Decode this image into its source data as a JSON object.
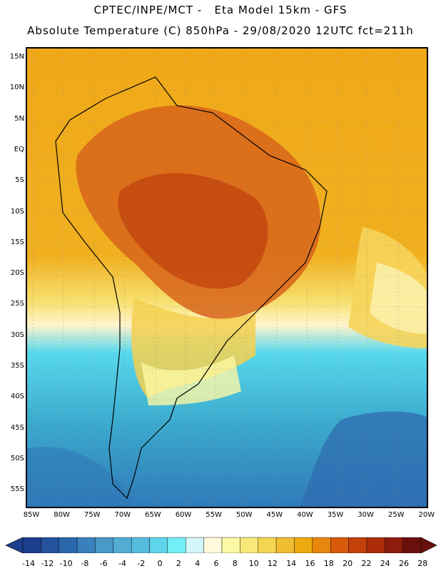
{
  "header": {
    "line1": "CPTEC/INPE/MCT -   Eta Model 15km - GFS",
    "line2": "Absolute Temperature (C) 850hPa - 29/08/2020 12UTC fct=211h"
  },
  "map": {
    "latitude_labels": [
      "15N",
      "10N",
      "5N",
      "EQ",
      "5S",
      "10S",
      "15S",
      "20S",
      "25S",
      "30S",
      "35S",
      "40S",
      "45S",
      "50S",
      "55S"
    ],
    "longitude_labels": [
      "85W",
      "80W",
      "75W",
      "70W",
      "65W",
      "60W",
      "55W",
      "50W",
      "45W",
      "40W",
      "35W",
      "30W",
      "25W",
      "20W"
    ],
    "colors": {
      "ocean_north": "#f0a818",
      "continent_hot": "#d8641a",
      "continent_very_hot": "#c2440e",
      "mild": "#f8e070",
      "cool": "#58d8ec",
      "cold": "#3aa8cc",
      "coldest": "#2f78b8"
    }
  },
  "colorbar": {
    "ticks": [
      "-14",
      "-12",
      "-10",
      "-8",
      "-6",
      "-4",
      "-2",
      "0",
      "2",
      "4",
      "6",
      "8",
      "10",
      "12",
      "14",
      "16",
      "18",
      "20",
      "22",
      "24",
      "26",
      "28"
    ],
    "colors": [
      "#1c3e8c",
      "#24529c",
      "#2c68ac",
      "#3a80bc",
      "#4898c8",
      "#52acd4",
      "#56bcde",
      "#5ed4ea",
      "#74eef6",
      "#d2f6fa",
      "#fffadc",
      "#fcf8a4",
      "#f8e878",
      "#f4d450",
      "#f0bc30",
      "#ecaa10",
      "#e8860e",
      "#d85a0a",
      "#c4400a",
      "#ac2c0a",
      "#8e1c0c",
      "#6a100c"
    ]
  }
}
